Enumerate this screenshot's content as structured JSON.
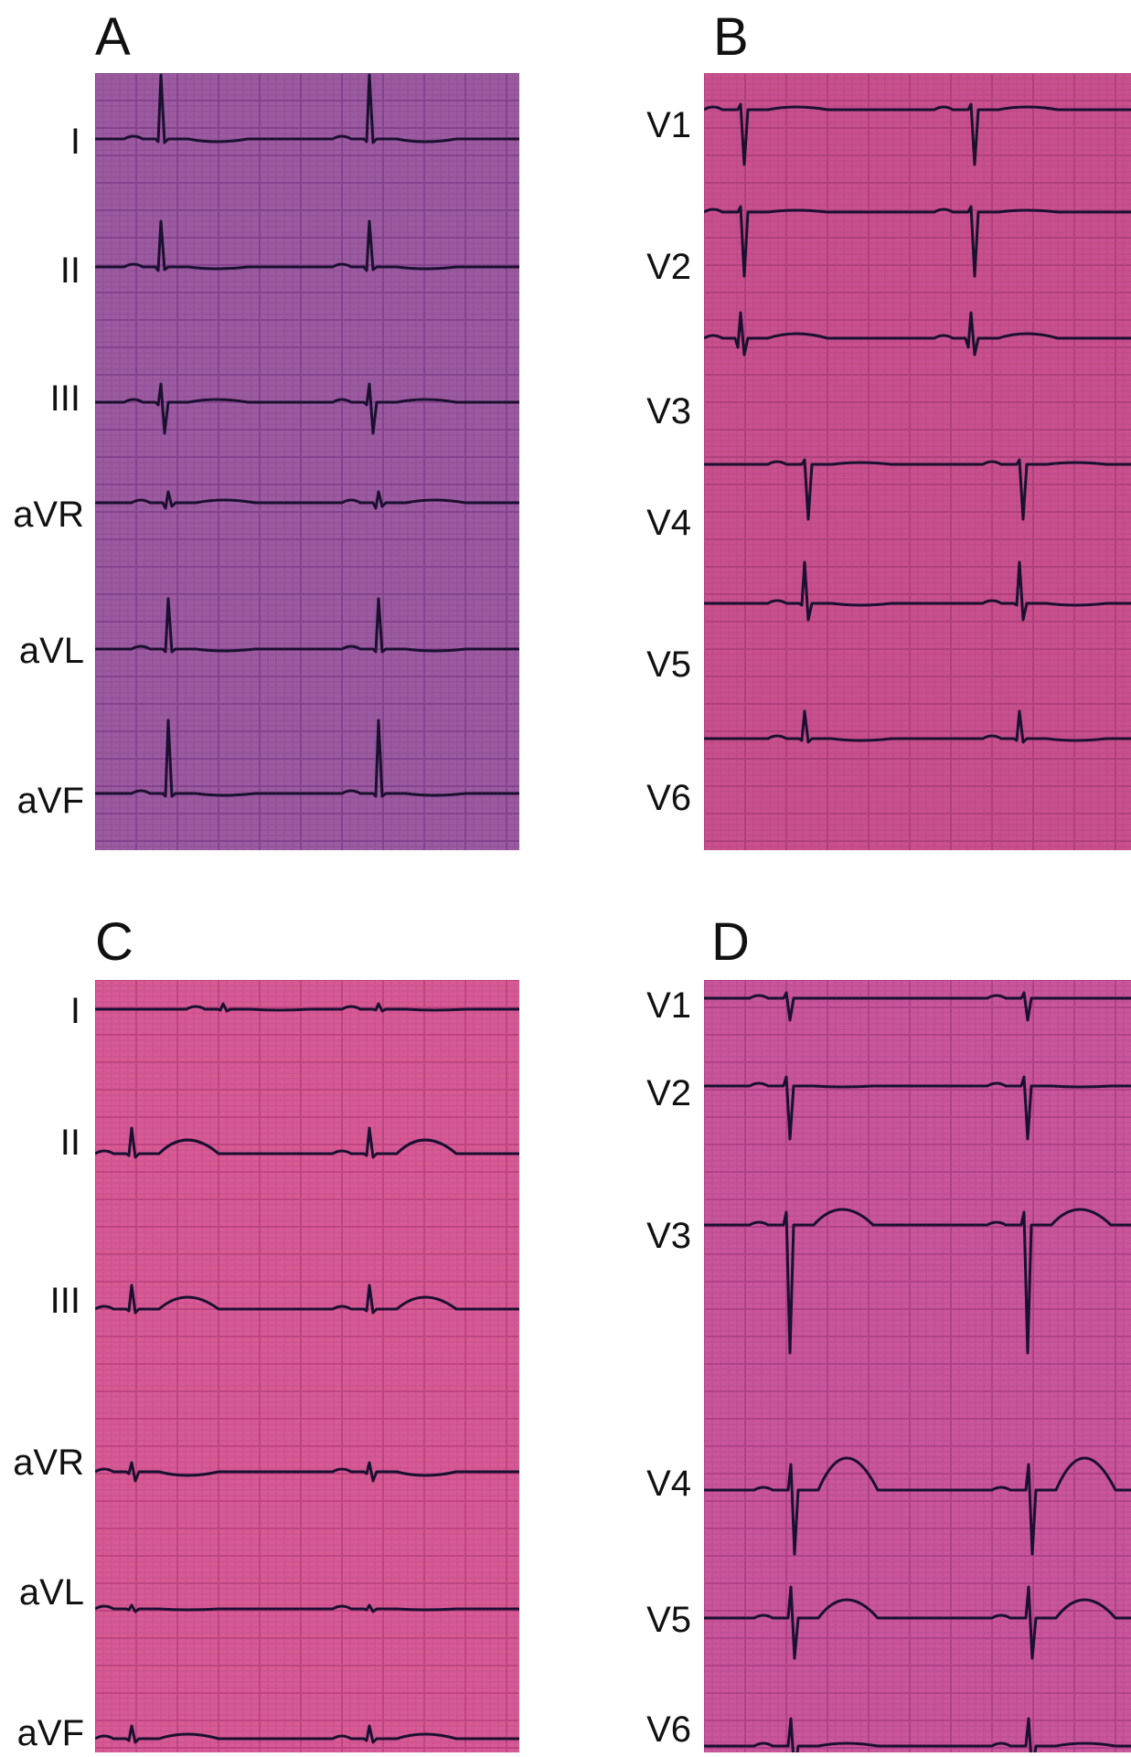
{
  "panels": [
    {
      "letter": "A",
      "leads": [
        "I",
        "II",
        "III",
        "aVR",
        "aVL",
        "aVF"
      ],
      "paper_color": "#9c5aa0",
      "grid_color": "#7a3a86"
    },
    {
      "letter": "B",
      "leads": [
        "V1",
        "V2",
        "V3",
        "V4",
        "V5",
        "V6"
      ],
      "paper_color": "#c9508e",
      "grid_color": "#a53a74"
    },
    {
      "letter": "C",
      "leads": [
        "I",
        "II",
        "III",
        "aVR",
        "aVL",
        "aVF"
      ],
      "paper_color": "#d75a95",
      "grid_color": "#b43c78"
    },
    {
      "letter": "D",
      "leads": [
        "V1",
        "V2",
        "V3",
        "V4",
        "V5",
        "V6"
      ],
      "paper_color": "#c9559a",
      "grid_color": "#a43a7e"
    }
  ],
  "trace_color": "#1a1030"
}
